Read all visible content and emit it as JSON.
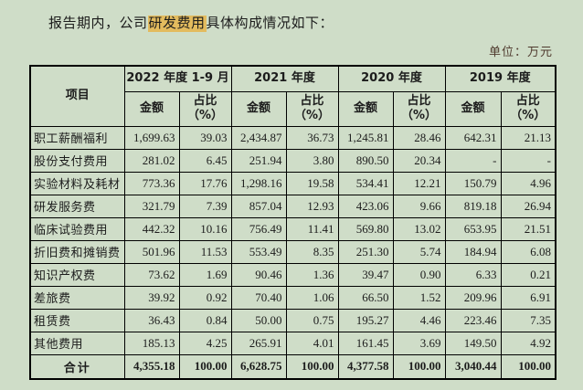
{
  "page": {
    "intro_prefix": "报告期内，公司",
    "intro_highlight": "研发费用",
    "intro_suffix": "具体构成情况如下：",
    "unit_label": "单位：万元"
  },
  "colors": {
    "page_background": "#cfddc8",
    "highlight": "#e3bb5e",
    "table_border": "#000000",
    "text": "#1c1c1c",
    "unit_text": "#4f3a2e"
  },
  "table": {
    "corner_header": "项目",
    "periods": [
      "2022 年度 1-9 月",
      "2021 年度",
      "2020 年度",
      "2019 年度"
    ],
    "amount_header": "金额",
    "ratio_header": "占比（%）",
    "rows": [
      {
        "item": "职工薪酬福利",
        "values": [
          "1,699.63",
          "39.03",
          "2,434.87",
          "36.73",
          "1,245.81",
          "28.46",
          "642.31",
          "21.13"
        ]
      },
      {
        "item": "股份支付费用",
        "values": [
          "281.02",
          "6.45",
          "251.94",
          "3.80",
          "890.50",
          "20.34",
          "-",
          "-"
        ]
      },
      {
        "item": "实验材料及耗材",
        "values": [
          "773.36",
          "17.76",
          "1,298.16",
          "19.58",
          "534.41",
          "12.21",
          "150.79",
          "4.96"
        ]
      },
      {
        "item": "研发服务费",
        "values": [
          "321.79",
          "7.39",
          "857.04",
          "12.93",
          "423.06",
          "9.66",
          "819.18",
          "26.94"
        ]
      },
      {
        "item": "临床试验费用",
        "values": [
          "442.32",
          "10.16",
          "756.49",
          "11.41",
          "569.80",
          "13.02",
          "653.95",
          "21.51"
        ]
      },
      {
        "item": "折旧费和摊销费",
        "values": [
          "501.96",
          "11.53",
          "553.49",
          "8.35",
          "251.30",
          "5.74",
          "184.94",
          "6.08"
        ]
      },
      {
        "item": "知识产权费",
        "values": [
          "73.62",
          "1.69",
          "90.46",
          "1.36",
          "39.47",
          "0.90",
          "6.33",
          "0.21"
        ]
      },
      {
        "item": "差旅费",
        "values": [
          "39.92",
          "0.92",
          "70.40",
          "1.06",
          "66.50",
          "1.52",
          "209.96",
          "6.91"
        ]
      },
      {
        "item": "租赁费",
        "values": [
          "36.43",
          "0.84",
          "50.00",
          "0.75",
          "195.27",
          "4.46",
          "223.46",
          "7.35"
        ]
      },
      {
        "item": "其他费用",
        "values": [
          "185.13",
          "4.25",
          "265.91",
          "4.01",
          "161.45",
          "3.69",
          "149.50",
          "4.92"
        ]
      }
    ],
    "total": {
      "item": "合计",
      "values": [
        "4,355.18",
        "100.00",
        "6,628.75",
        "100.00",
        "4,377.58",
        "100.00",
        "3,040.44",
        "100.00"
      ]
    }
  }
}
